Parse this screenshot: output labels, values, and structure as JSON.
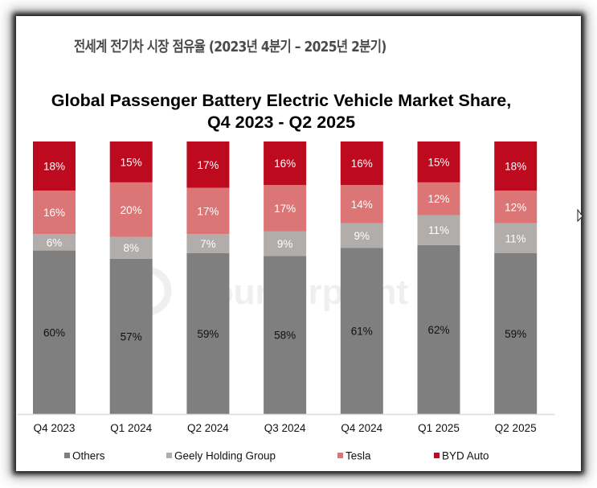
{
  "header": {
    "korean_title": "전세계 전기차 시장 점유율 (2023년 4분기 – 2025년 2분기)"
  },
  "watermark": "Counterpoint",
  "chart_data": {
    "type": "bar",
    "stacked": true,
    "title_line1": "Global Passenger Battery Electric Vehicle Market Share,",
    "title_line2": "Q4 2023 - Q2 2025",
    "xlabel": "",
    "ylabel": "",
    "ylim": [
      0,
      100
    ],
    "grid": false,
    "legend_position": "bottom",
    "categories": [
      "Q4 2023",
      "Q1 2024",
      "Q2 2024",
      "Q3 2024",
      "Q4 2024",
      "Q1 2025",
      "Q2 2025"
    ],
    "series": [
      {
        "name": "Others",
        "color": "#7f7f7f",
        "label_color": "#111111",
        "values": [
          60,
          57,
          59,
          58,
          61,
          62,
          59
        ]
      },
      {
        "name": "Geely Holding Group",
        "color": "#b0adab",
        "label_color": "#ffffff",
        "values": [
          6,
          8,
          7,
          9,
          9,
          11,
          11
        ]
      },
      {
        "name": "Tesla",
        "color": "#dc7676",
        "label_color": "#ffffff",
        "values": [
          16,
          20,
          17,
          17,
          14,
          12,
          12
        ]
      },
      {
        "name": "BYD Auto",
        "color": "#be0a1e",
        "label_color": "#ffffff",
        "values": [
          18,
          15,
          17,
          16,
          16,
          15,
          18
        ]
      }
    ],
    "data_label_suffix": "%"
  }
}
